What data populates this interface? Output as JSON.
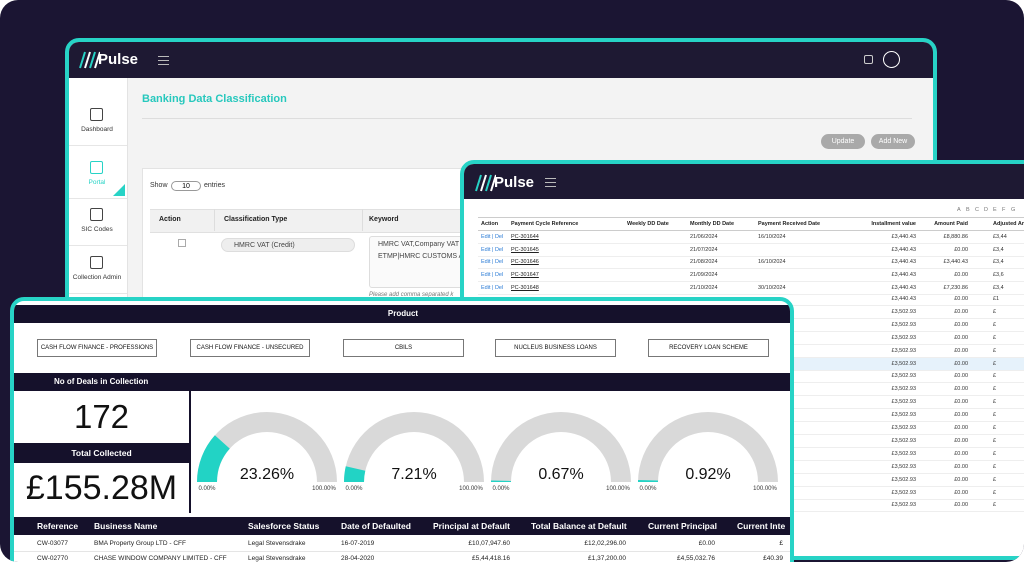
{
  "window1": {
    "logo": "Pulse",
    "sidebar": [
      "Dashboard",
      "Portal",
      "SIC Codes",
      "Collection Admin"
    ],
    "title": "Banking Data Classification",
    "buttons": [
      "Update",
      "Add New"
    ],
    "show": "Show",
    "entries_value": 10,
    "entries": "entries",
    "columns": [
      "Action",
      "Classification Type",
      "Keyword"
    ],
    "row": {
      "type": "HMRC VAT (Credit)",
      "keyword_1": "HMRC VAT,Company VAT",
      "keyword_2": "ETMP|HMRC CUSTOMS A"
    },
    "hint": "Please add comma separated k"
  },
  "window2": {
    "logo": "Pulse",
    "letters": [
      "A",
      "B",
      "C",
      "D",
      "E",
      "F",
      "G"
    ],
    "columns": [
      "Action",
      "Payment Cycle Reference",
      "Weekly DD Date",
      "Monthly DD Date",
      "Payment Received Date",
      "Installment value",
      "Amount Paid",
      "Adjusted Am"
    ],
    "rows": [
      {
        "action": "Edit | Del",
        "ref": "PC-301644",
        "monthly": "21/06/2024",
        "received": "16/10/2024",
        "installment": "£3,440.43",
        "paid": "£8,880.86",
        "adjusted": "£3,44"
      },
      {
        "action": "Edit | Del",
        "ref": "PC-301645",
        "monthly": "21/07/2024",
        "installment": "£3,440.43",
        "paid": "£0.00",
        "adjusted": "£3,4"
      },
      {
        "action": "Edit | Del",
        "ref": "PC-301646",
        "monthly": "21/08/2024",
        "received": "16/10/2024",
        "installment": "£3,440.43",
        "paid": "£3,440.43",
        "adjusted": "£3,4"
      },
      {
        "action": "Edit | Del",
        "ref": "PC-301647",
        "monthly": "21/09/2024",
        "installment": "£3,440.43",
        "paid": "£0.00",
        "adjusted": "£3,6"
      },
      {
        "action": "Edit | Del",
        "ref": "PC-301648",
        "monthly": "21/10/2024",
        "received": "30/10/2024",
        "installment": "£3,440.43",
        "paid": "£7,230.86",
        "adjusted": "£3,4"
      }
    ],
    "lower_rows": [
      {
        "installment": "£3,440.43",
        "paid": "£0.00",
        "adjusted": "£1"
      },
      {
        "installment": "£3,502.93",
        "paid": "£0.00",
        "adjusted": "£"
      },
      {
        "installment": "£3,502.93",
        "paid": "£0.00",
        "adjusted": "£"
      },
      {
        "installment": "£3,502.93",
        "paid": "£0.00",
        "adjusted": "£"
      },
      {
        "installment": "£3,502.93",
        "paid": "£0.00",
        "adjusted": "£"
      },
      {
        "installment": "£3,502.93",
        "paid": "£0.00",
        "adjusted": "£"
      },
      {
        "installment": "£3,502.93",
        "paid": "£0.00",
        "adjusted": "£"
      },
      {
        "installment": "£3,502.93",
        "paid": "£0.00",
        "adjusted": "£"
      },
      {
        "installment": "£3,502.93",
        "paid": "£0.00",
        "adjusted": "£"
      },
      {
        "installment": "£3,502.93",
        "paid": "£0.00",
        "adjusted": "£"
      },
      {
        "installment": "£3,502.93",
        "paid": "£0.00",
        "adjusted": "£"
      },
      {
        "installment": "£3,502.93",
        "paid": "£0.00",
        "adjusted": "£"
      },
      {
        "installment": "£3,502.93",
        "paid": "£0.00",
        "adjusted": "£"
      },
      {
        "installment": "£3,502.93",
        "paid": "£0.00",
        "adjusted": "£"
      },
      {
        "installment": "£3,502.93",
        "paid": "£0.00",
        "adjusted": "£"
      },
      {
        "installment": "£3,502.93",
        "paid": "£0.00",
        "adjusted": "£"
      },
      {
        "installment": "£3,502.93",
        "paid": "£0.00",
        "adjusted": "£"
      }
    ]
  },
  "window3": {
    "product_title": "Product",
    "products": [
      "CASH FLOW FINANCE - PROFESSIONS",
      "CASH FLOW FINANCE - UNSECURED",
      "CBILS",
      "NUCLEUS BUSINESS LOANS",
      "RECOVERY LOAN SCHEME"
    ],
    "deals_title": "No of Deals in Collection",
    "deals": 172,
    "collected_title": "Total Collected",
    "collected": "£155.28M",
    "gauges": {
      "values": [
        23.26,
        7.21,
        0.67,
        0.92
      ],
      "value_labels": [
        "23.26%",
        "7.21%",
        "0.67%",
        "0.92%"
      ],
      "min_label": "0.00%",
      "max_label": "100.00%",
      "range": [
        0,
        100
      ],
      "color": "#22d3c5"
    },
    "columns": [
      "Reference",
      "Business Name",
      "Salesforce Status",
      "Date of Defaulted",
      "Principal at Default",
      "Total Balance at Default",
      "Current Principal",
      "Current Inte"
    ],
    "rows": [
      [
        "CW-03077",
        "BMA Property Group LTD - CFF",
        "Legal Stevensdrake",
        "16-07-2019",
        "£10,07,947.60",
        "£12,02,296.00",
        "£0.00",
        "£"
      ],
      [
        "CW-02770",
        "CHASE WINDOW COMPANY LIMITED - CFF",
        "Legal Stevensdrake",
        "28-04-2020",
        "£5,44,418.16",
        "£1,37,200.00",
        "£4,55,032.76",
        "£40.39"
      ]
    ]
  }
}
